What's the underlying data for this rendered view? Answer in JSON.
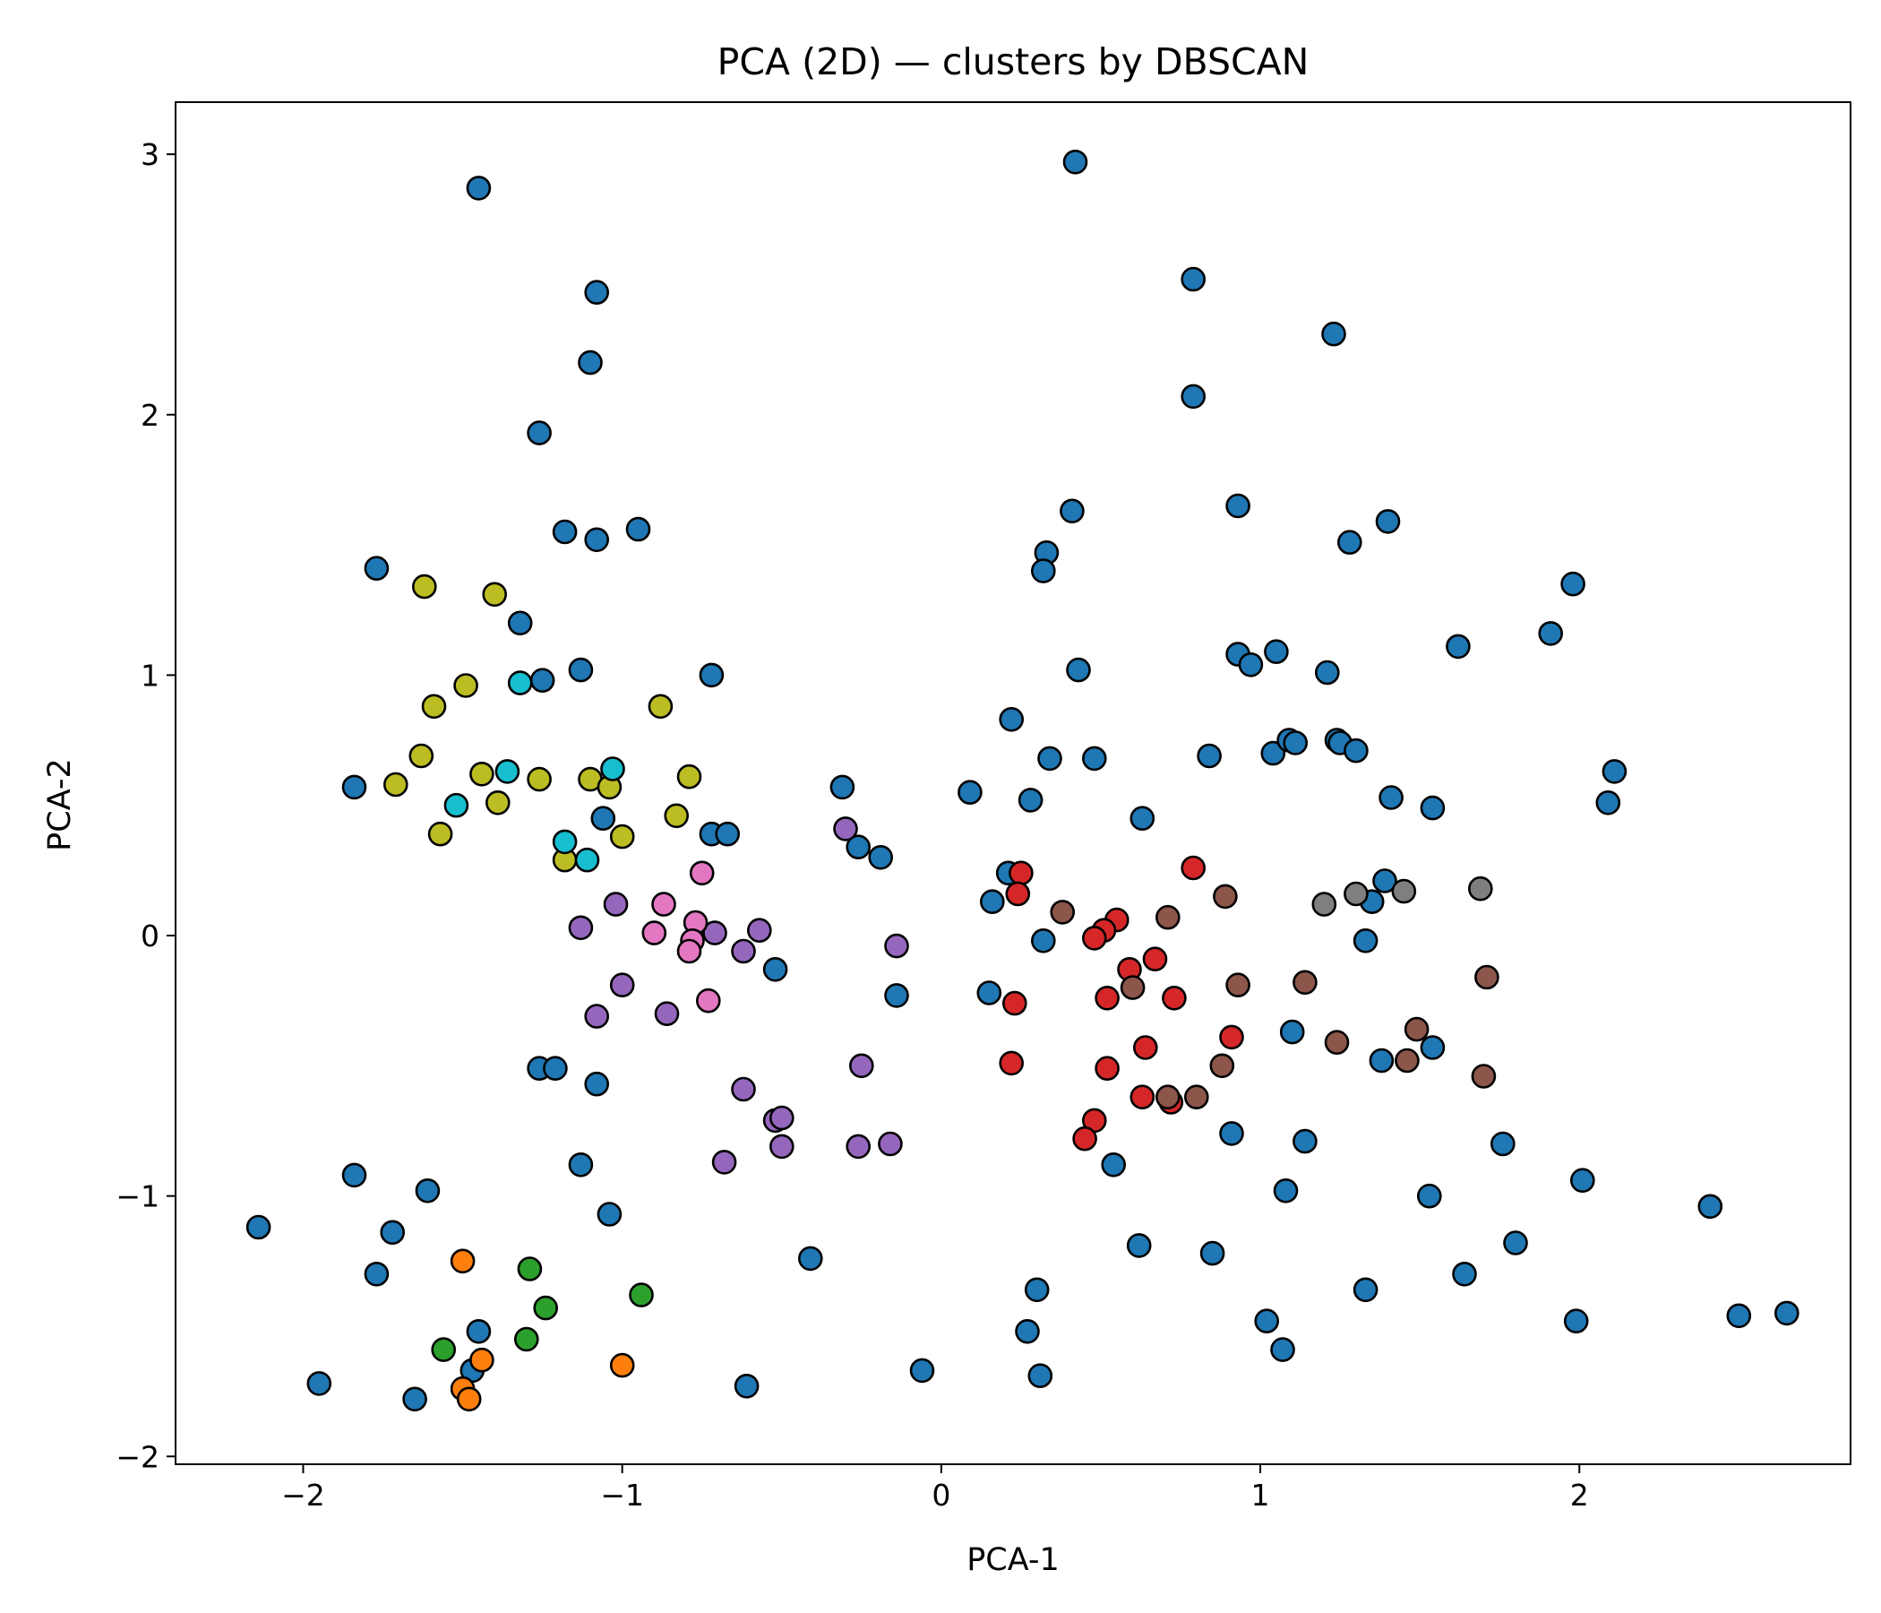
{
  "chart_data": {
    "type": "scatter",
    "title": "PCA (2D) — clusters by DBSCAN",
    "xlabel": "PCA-1",
    "ylabel": "PCA-2",
    "xlim": [
      -2.4,
      2.85
    ],
    "ylim": [
      -2.03,
      3.2
    ],
    "xticks": [
      -2,
      -1,
      0,
      1,
      2
    ],
    "yticks": [
      -2,
      -1,
      0,
      1,
      2,
      3
    ],
    "xtick_labels": [
      "−2",
      "−1",
      "0",
      "1",
      "2"
    ],
    "ytick_labels": [
      "−2",
      "−1",
      "0",
      "1",
      "2",
      "3"
    ],
    "grid": false,
    "legend": "none",
    "colors": {
      "noise": "#1f77b4",
      "c0": "#ff7f0e",
      "c1": "#2ca02c",
      "c2": "#d62728",
      "c3": "#9467bd",
      "c4": "#8c564b",
      "c5": "#e377c2",
      "c6": "#7f7f7f",
      "c7": "#bcbd22",
      "c8": "#17becf"
    },
    "series": [
      {
        "cluster": "noise",
        "points": [
          [
            -1.45,
            2.87
          ],
          [
            0.42,
            2.97
          ],
          [
            -1.08,
            2.47
          ],
          [
            -1.1,
            2.2
          ],
          [
            0.79,
            2.52
          ],
          [
            1.23,
            2.31
          ],
          [
            -1.26,
            1.93
          ],
          [
            0.79,
            2.07
          ],
          [
            -1.18,
            1.55
          ],
          [
            -1.08,
            1.52
          ],
          [
            -0.95,
            1.56
          ],
          [
            0.41,
            1.63
          ],
          [
            0.93,
            1.65
          ],
          [
            1.4,
            1.59
          ],
          [
            0.33,
            1.47
          ],
          [
            0.32,
            1.4
          ],
          [
            1.28,
            1.51
          ],
          [
            -1.77,
            1.41
          ],
          [
            1.98,
            1.35
          ],
          [
            -1.32,
            1.2
          ],
          [
            1.91,
            1.16
          ],
          [
            1.62,
            1.11
          ],
          [
            -1.13,
            1.02
          ],
          [
            -1.25,
            0.98
          ],
          [
            -0.72,
            1.0
          ],
          [
            0.43,
            1.02
          ],
          [
            0.93,
            1.08
          ],
          [
            1.05,
            1.09
          ],
          [
            0.97,
            1.04
          ],
          [
            1.21,
            1.01
          ],
          [
            0.22,
            0.83
          ],
          [
            1.04,
            0.7
          ],
          [
            1.09,
            0.75
          ],
          [
            1.11,
            0.74
          ],
          [
            1.24,
            0.75
          ],
          [
            1.25,
            0.74
          ],
          [
            1.3,
            0.71
          ],
          [
            0.34,
            0.68
          ],
          [
            0.48,
            0.68
          ],
          [
            0.84,
            0.69
          ],
          [
            2.11,
            0.63
          ],
          [
            2.09,
            0.51
          ],
          [
            -1.84,
            0.57
          ],
          [
            -1.06,
            0.45
          ],
          [
            -0.31,
            0.57
          ],
          [
            0.09,
            0.55
          ],
          [
            0.28,
            0.52
          ],
          [
            1.41,
            0.53
          ],
          [
            1.54,
            0.49
          ],
          [
            0.63,
            0.45
          ],
          [
            -0.72,
            0.39
          ],
          [
            -0.67,
            0.39
          ],
          [
            -0.26,
            0.34
          ],
          [
            -0.19,
            0.3
          ],
          [
            0.21,
            0.24
          ],
          [
            0.16,
            0.13
          ],
          [
            1.39,
            0.21
          ],
          [
            1.35,
            0.13
          ],
          [
            0.32,
            -0.02
          ],
          [
            1.33,
            -0.02
          ],
          [
            -0.52,
            -0.13
          ],
          [
            -0.14,
            -0.23
          ],
          [
            0.15,
            -0.22
          ],
          [
            1.1,
            -0.37
          ],
          [
            1.38,
            -0.48
          ],
          [
            1.54,
            -0.43
          ],
          [
            -1.26,
            -0.51
          ],
          [
            -1.21,
            -0.51
          ],
          [
            -1.08,
            -0.57
          ],
          [
            0.91,
            -0.76
          ],
          [
            1.14,
            -0.79
          ],
          [
            1.76,
            -0.8
          ],
          [
            -1.13,
            -0.88
          ],
          [
            0.54,
            -0.88
          ],
          [
            -1.84,
            -0.92
          ],
          [
            -1.61,
            -0.98
          ],
          [
            1.08,
            -0.98
          ],
          [
            1.53,
            -1.0
          ],
          [
            2.01,
            -0.94
          ],
          [
            2.41,
            -1.04
          ],
          [
            -2.14,
            -1.12
          ],
          [
            -1.72,
            -1.14
          ],
          [
            -1.04,
            -1.07
          ],
          [
            0.62,
            -1.19
          ],
          [
            0.85,
            -1.22
          ],
          [
            1.8,
            -1.18
          ],
          [
            -0.41,
            -1.24
          ],
          [
            -1.77,
            -1.3
          ],
          [
            1.64,
            -1.3
          ],
          [
            0.3,
            -1.36
          ],
          [
            1.33,
            -1.36
          ],
          [
            -1.45,
            -1.52
          ],
          [
            0.27,
            -1.52
          ],
          [
            1.02,
            -1.48
          ],
          [
            1.07,
            -1.59
          ],
          [
            1.99,
            -1.48
          ],
          [
            2.5,
            -1.46
          ],
          [
            2.65,
            -1.45
          ],
          [
            -1.95,
            -1.72
          ],
          [
            -1.65,
            -1.78
          ],
          [
            -1.47,
            -1.67
          ],
          [
            -0.61,
            -1.73
          ],
          [
            -0.06,
            -1.67
          ],
          [
            0.31,
            -1.69
          ]
        ]
      },
      {
        "cluster": "c0",
        "points": [
          [
            -1.5,
            -1.25
          ],
          [
            -1.44,
            -1.63
          ],
          [
            -1.5,
            -1.74
          ],
          [
            -1.48,
            -1.78
          ],
          [
            -1.0,
            -1.65
          ]
        ]
      },
      {
        "cluster": "c1",
        "points": [
          [
            -1.29,
            -1.28
          ],
          [
            -1.24,
            -1.43
          ],
          [
            -0.94,
            -1.38
          ],
          [
            -1.56,
            -1.59
          ],
          [
            -1.3,
            -1.55
          ]
        ]
      },
      {
        "cluster": "c2",
        "points": [
          [
            0.79,
            0.26
          ],
          [
            0.25,
            0.24
          ],
          [
            0.24,
            0.16
          ],
          [
            0.55,
            0.06
          ],
          [
            0.51,
            0.02
          ],
          [
            0.48,
            -0.01
          ],
          [
            0.67,
            -0.09
          ],
          [
            0.59,
            -0.13
          ],
          [
            0.73,
            -0.24
          ],
          [
            0.52,
            -0.24
          ],
          [
            0.23,
            -0.26
          ],
          [
            0.64,
            -0.43
          ],
          [
            0.91,
            -0.39
          ],
          [
            0.22,
            -0.49
          ],
          [
            0.52,
            -0.51
          ],
          [
            0.63,
            -0.62
          ],
          [
            0.72,
            -0.64
          ],
          [
            0.48,
            -0.71
          ],
          [
            0.45,
            -0.78
          ]
        ]
      },
      {
        "cluster": "c3",
        "points": [
          [
            -0.3,
            0.41
          ],
          [
            -1.02,
            0.12
          ],
          [
            -1.13,
            0.03
          ],
          [
            -0.71,
            0.01
          ],
          [
            -0.57,
            0.02
          ],
          [
            -0.62,
            -0.06
          ],
          [
            -0.14,
            -0.04
          ],
          [
            -1.0,
            -0.19
          ],
          [
            -1.08,
            -0.31
          ],
          [
            -0.86,
            -0.3
          ],
          [
            -0.25,
            -0.5
          ],
          [
            -0.62,
            -0.59
          ],
          [
            -0.52,
            -0.71
          ],
          [
            -0.5,
            -0.7
          ],
          [
            -0.5,
            -0.81
          ],
          [
            -0.26,
            -0.81
          ],
          [
            -0.16,
            -0.8
          ],
          [
            -0.68,
            -0.87
          ]
        ]
      },
      {
        "cluster": "c4",
        "points": [
          [
            0.38,
            0.09
          ],
          [
            0.71,
            0.07
          ],
          [
            0.89,
            0.15
          ],
          [
            0.6,
            -0.2
          ],
          [
            0.93,
            -0.19
          ],
          [
            1.14,
            -0.18
          ],
          [
            1.71,
            -0.16
          ],
          [
            1.24,
            -0.41
          ],
          [
            1.49,
            -0.36
          ],
          [
            1.46,
            -0.48
          ],
          [
            0.88,
            -0.5
          ],
          [
            1.7,
            -0.54
          ],
          [
            0.71,
            -0.62
          ],
          [
            0.8,
            -0.62
          ]
        ]
      },
      {
        "cluster": "c5",
        "points": [
          [
            -0.75,
            0.24
          ],
          [
            -0.87,
            0.12
          ],
          [
            -0.77,
            0.05
          ],
          [
            -0.9,
            0.01
          ],
          [
            -0.78,
            -0.02
          ],
          [
            -0.79,
            -0.06
          ],
          [
            -0.73,
            -0.25
          ]
        ]
      },
      {
        "cluster": "c6",
        "points": [
          [
            1.2,
            0.12
          ],
          [
            1.3,
            0.16
          ],
          [
            1.45,
            0.17
          ],
          [
            1.69,
            0.18
          ]
        ]
      },
      {
        "cluster": "c7",
        "points": [
          [
            -1.62,
            1.34
          ],
          [
            -1.4,
            1.31
          ],
          [
            -1.59,
            0.88
          ],
          [
            -1.49,
            0.96
          ],
          [
            -0.88,
            0.88
          ],
          [
            -1.63,
            0.69
          ],
          [
            -1.71,
            0.58
          ],
          [
            -1.44,
            0.62
          ],
          [
            -1.26,
            0.6
          ],
          [
            -1.1,
            0.6
          ],
          [
            -1.04,
            0.57
          ],
          [
            -0.79,
            0.61
          ],
          [
            -1.39,
            0.51
          ],
          [
            -1.57,
            0.39
          ],
          [
            -1.0,
            0.38
          ],
          [
            -0.83,
            0.46
          ],
          [
            -1.18,
            0.29
          ]
        ]
      },
      {
        "cluster": "c8",
        "points": [
          [
            -1.32,
            0.97
          ],
          [
            -1.36,
            0.63
          ],
          [
            -1.52,
            0.5
          ],
          [
            -1.03,
            0.64
          ],
          [
            -1.18,
            0.36
          ],
          [
            -1.11,
            0.29
          ]
        ]
      }
    ]
  }
}
